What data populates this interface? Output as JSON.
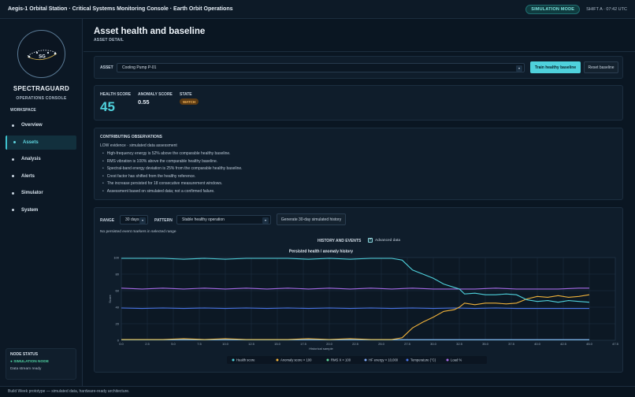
{
  "topbar": {
    "title": "Aegis-1 Orbital Station · Critical Systems Monitoring Console · Earth Orbit Operations",
    "mode_badge": "SIMULATION MODE",
    "shift": "SHIFT A · 07:42 UTC"
  },
  "sidebar": {
    "logo_text": "SG",
    "brand": "SPECTRAGUARD",
    "brand_sub": "OPERATIONS CONSOLE",
    "workspace_label": "WORKSPACE",
    "items": [
      {
        "label": "Overview",
        "active": false
      },
      {
        "label": "Assets",
        "active": true
      },
      {
        "label": "Analysis",
        "active": false
      },
      {
        "label": "Alerts",
        "active": false
      },
      {
        "label": "Simulator",
        "active": false
      },
      {
        "label": "System",
        "active": false
      }
    ],
    "node_status": {
      "title": "NODE STATUS",
      "node": "● SIMULATION NODE",
      "state": "Data stream ready"
    }
  },
  "header": {
    "title": "Asset health and baseline",
    "subtitle": "ASSET DETAIL"
  },
  "asset_bar": {
    "label": "ASSET",
    "selected": "Cooling Pump P-01",
    "train_button": "Train healthy baseline",
    "reset_button": "Reset baseline"
  },
  "health": {
    "health_label": "HEALTH SCORE",
    "health_value": "45",
    "anomaly_label": "ANOMALY SCORE",
    "anomaly_value": "0.55",
    "state_label": "STATE",
    "state_value": "WATCH"
  },
  "observations": {
    "title": "CONTRIBUTING OBSERVATIONS",
    "evidence": "LOW evidence · simulated data assessment",
    "items": [
      "High-frequency energy is 52% above the comparable healthy baseline.",
      "RMS vibration is 100% above the comparable healthy baseline.",
      "Spectral-band energy deviation is 25% from the comparable healthy baseline.",
      "Crest factor has shifted from the healthy reference.",
      "The increase persisted for 18 consecutive measurement windows.",
      "Assessment based on simulated data; not a confirmed failure."
    ]
  },
  "history": {
    "range_label": "RANGE",
    "range_value": "30 days",
    "pattern_label": "PATTERN",
    "pattern_value": "Stable healthy operation",
    "generate_button": "Generate 30-day simulated history",
    "no_markers": "No persisted event markers in selected range",
    "section_title": "HISTORY AND EVENTS",
    "advanced_label": "Advanced data"
  },
  "chart_data": {
    "type": "line",
    "title": "Persisted health / anomaly history",
    "xlabel": "Historical sample",
    "ylabel": "Score",
    "xlim": [
      0,
      47.5
    ],
    "ylim": [
      0,
      100
    ],
    "x_ticks": [
      0.0,
      2.5,
      5.0,
      7.5,
      10.0,
      12.5,
      15.0,
      17.5,
      20.0,
      22.5,
      25.0,
      27.5,
      30.0,
      32.5,
      35.0,
      37.5,
      40.0,
      42.5,
      45.0,
      47.5
    ],
    "y_ticks": [
      0,
      20,
      40,
      60,
      80,
      100
    ],
    "grid": true,
    "legend": "bottom",
    "series": [
      {
        "name": "Health score",
        "color": "#4fd1dc",
        "x": [
          0,
          2,
          4,
          6,
          8,
          10,
          12,
          14,
          16,
          18,
          20,
          22,
          24,
          26,
          27,
          28,
          29,
          30,
          31,
          32,
          32.5,
          33,
          34,
          35,
          36,
          37,
          38,
          39,
          40,
          41,
          42,
          43,
          44,
          45
        ],
        "y": [
          99,
          99,
          99,
          98,
          99,
          98,
          99,
          99,
          99,
          98,
          99,
          98,
          99,
          99,
          97,
          85,
          80,
          75,
          68,
          64,
          62,
          56,
          57,
          55,
          55,
          56,
          55,
          49,
          47,
          48,
          46,
          48,
          47,
          46
        ]
      },
      {
        "name": "Anomaly score × 100",
        "color": "#f0b23a",
        "x": [
          0,
          2,
          4,
          6,
          8,
          10,
          12,
          14,
          16,
          18,
          20,
          22,
          24,
          26,
          27,
          28,
          29,
          30,
          31,
          32,
          32.5,
          33,
          34,
          35,
          36,
          37,
          38,
          39,
          40,
          41,
          42,
          43,
          44,
          45
        ],
        "y": [
          1,
          1,
          1,
          2,
          1,
          2,
          1,
          1,
          1,
          2,
          1,
          2,
          1,
          1,
          3,
          15,
          22,
          28,
          35,
          37,
          40,
          45,
          43,
          45,
          45,
          44,
          45,
          50,
          53,
          52,
          54,
          52,
          53,
          55
        ]
      },
      {
        "name": "RMS X × 100",
        "color": "#5fd39a",
        "x": [
          0,
          5,
          10,
          15,
          20,
          25,
          30,
          35,
          40,
          45
        ],
        "y": [
          0.5,
          0.5,
          0.5,
          0.5,
          0.5,
          0.5,
          0.5,
          0.5,
          0.5,
          0.5
        ]
      },
      {
        "name": "HF energy × 10,000",
        "color": "#7fa9f5",
        "x": [
          0,
          5,
          10,
          15,
          20,
          25,
          30,
          35,
          40,
          45
        ],
        "y": [
          0.8,
          0.8,
          0.8,
          0.8,
          0.8,
          0.8,
          0.8,
          0.8,
          0.8,
          0.8
        ]
      },
      {
        "name": "Temperature (°C)",
        "color": "#4a74e6",
        "x": [
          0,
          2,
          4,
          6,
          8,
          10,
          12,
          14,
          16,
          18,
          20,
          22,
          24,
          26,
          28,
          30,
          32,
          34,
          36,
          38,
          40,
          42,
          44,
          45
        ],
        "y": [
          39,
          38.5,
          39,
          38.5,
          39,
          38.5,
          39,
          38.5,
          39,
          38.5,
          39,
          38.5,
          39,
          38.5,
          39,
          38.5,
          39,
          38.5,
          39,
          38.5,
          38.5,
          38.5,
          38.5,
          38.5
        ]
      },
      {
        "name": "Load %",
        "color": "#a66be8",
        "x": [
          0,
          2,
          4,
          6,
          8,
          10,
          12,
          14,
          16,
          18,
          20,
          22,
          24,
          26,
          28,
          30,
          32,
          34,
          36,
          38,
          40,
          42,
          44,
          45
        ],
        "y": [
          63,
          62,
          63,
          62,
          63,
          62,
          63,
          62,
          63,
          62,
          63,
          62,
          63,
          62,
          63,
          62,
          62,
          62,
          63,
          62,
          62,
          62,
          63,
          63
        ]
      }
    ]
  }
}
